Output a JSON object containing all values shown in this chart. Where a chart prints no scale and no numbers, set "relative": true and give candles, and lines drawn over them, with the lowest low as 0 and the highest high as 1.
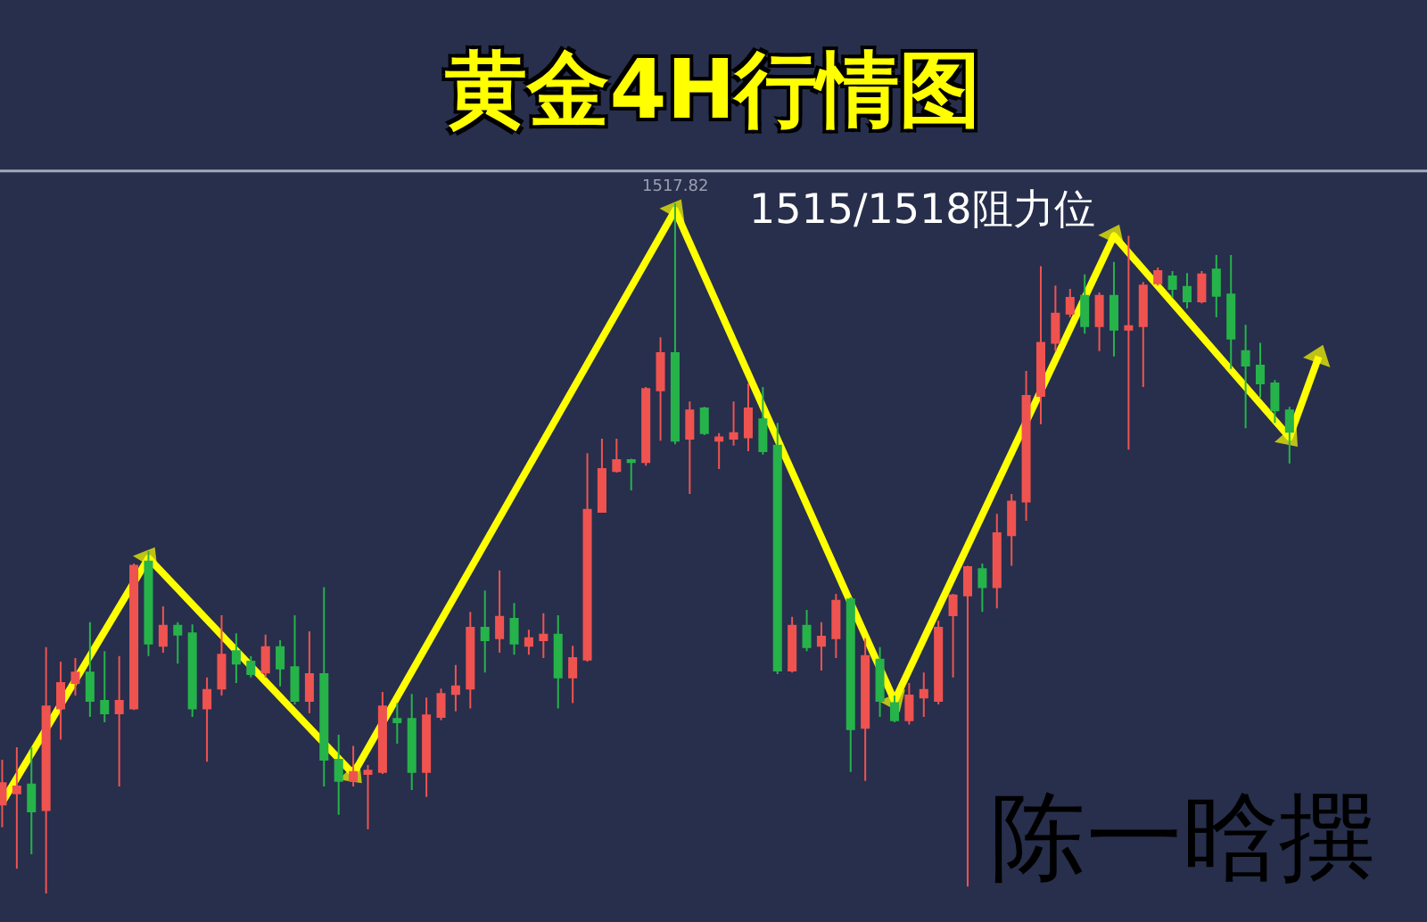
{
  "chart_data": {
    "type": "candlestick",
    "title": "黄金4H行情图",
    "relative": true,
    "categories": [
      null,
      null,
      null,
      null,
      null,
      null,
      null,
      null,
      null,
      null,
      null,
      null,
      null,
      null,
      null,
      null,
      null,
      null,
      null,
      null,
      null,
      null,
      null,
      null,
      null,
      null,
      null,
      null,
      null,
      null,
      null,
      null,
      null,
      null,
      null,
      null,
      null,
      null,
      null,
      null,
      null,
      null,
      null,
      null,
      null,
      null,
      null,
      null,
      null,
      null,
      null,
      null,
      null,
      null,
      null,
      null,
      null,
      null,
      null,
      null,
      null,
      null,
      null,
      null,
      null,
      null,
      null,
      null,
      null,
      null,
      null,
      null,
      null,
      null,
      null,
      null,
      null,
      null,
      null,
      null,
      null,
      null,
      null,
      null,
      null,
      null,
      null,
      null,
      null,
      null,
      null
    ],
    "ohlc": [
      [
        0.129,
        0.194,
        0.096,
        0.16
      ],
      [
        0.145,
        0.212,
        0.036,
        0.155
      ],
      [
        0.158,
        0.212,
        0.057,
        0.119
      ],
      [
        0.121,
        0.357,
        0,
        0.271
      ],
      [
        0.268,
        0.336,
        0.223,
        0.305
      ],
      [
        0.305,
        0.341,
        0.287,
        0.32
      ],
      [
        0.32,
        0.393,
        0.256,
        0.279
      ],
      [
        0.279,
        0.351,
        0.248,
        0.261
      ],
      [
        0.261,
        0.344,
        0.155,
        0.279
      ],
      [
        0.268,
        0.478,
        0.266,
        0.475
      ],
      [
        0.481,
        0.496,
        0.344,
        0.362
      ],
      [
        0.359,
        0.416,
        0.349,
        0.388
      ],
      [
        0.388,
        0.393,
        0.333,
        0.375
      ],
      [
        0.377,
        0.39,
        0.256,
        0.268
      ],
      [
        0.268,
        0.313,
        0.191,
        0.295
      ],
      [
        0.297,
        0.403,
        0.287,
        0.346
      ],
      [
        0.351,
        0.377,
        0.305,
        0.333
      ],
      [
        0.336,
        0.344,
        0.313,
        0.318
      ],
      [
        0.32,
        0.375,
        0.313,
        0.357
      ],
      [
        0.357,
        0.367,
        0.3,
        0.326
      ],
      [
        0.328,
        0.403,
        0.274,
        0.279
      ],
      [
        0.279,
        0.38,
        0.261,
        0.318
      ],
      [
        0.318,
        0.444,
        0.155,
        0.194
      ],
      [
        0.194,
        0.23,
        0.114,
        0.163
      ],
      [
        0.163,
        0.214,
        0.155,
        0.176
      ],
      [
        0.173,
        0.186,
        0.093,
        0.178
      ],
      [
        0.176,
        0.292,
        0.173,
        0.271
      ],
      [
        0.253,
        0.276,
        0.217,
        0.248
      ],
      [
        0.253,
        0.289,
        0.15,
        0.176
      ],
      [
        0.176,
        0.284,
        0.14,
        0.258
      ],
      [
        0.256,
        0.297,
        0.251,
        0.289
      ],
      [
        0.289,
        0.331,
        0.264,
        0.3
      ],
      [
        0.297,
        0.408,
        0.268,
        0.385
      ],
      [
        0.385,
        0.439,
        0.32,
        0.367
      ],
      [
        0.37,
        0.468,
        0.349,
        0.401
      ],
      [
        0.398,
        0.421,
        0.346,
        0.362
      ],
      [
        0.359,
        0.382,
        0.346,
        0.37
      ],
      [
        0.367,
        0.406,
        0.341,
        0.375
      ],
      [
        0.375,
        0.403,
        0.268,
        0.313
      ],
      [
        0.313,
        0.359,
        0.276,
        0.341
      ],
      [
        0.339,
        0.638,
        0.336,
        0.556
      ],
      [
        0.553,
        0.659,
        0.553,
        0.615
      ],
      [
        0.612,
        0.659,
        0.61,
        0.628
      ],
      [
        0.628,
        0.63,
        0.584,
        0.625
      ],
      [
        0.625,
        0.734,
        0.62,
        0.731
      ],
      [
        0.729,
        0.806,
        0.656,
        0.783
      ],
      [
        0.783,
        1,
        0.651,
        0.656
      ],
      [
        0.659,
        0.713,
        0.579,
        0.7
      ],
      [
        0.703,
        0.705,
        0.664,
        0.667
      ],
      [
        0.656,
        0.667,
        0.615,
        0.661
      ],
      [
        0.659,
        0.713,
        0.649,
        0.667
      ],
      [
        0.661,
        0.739,
        0.641,
        0.703
      ],
      [
        0.687,
        0.734,
        0.636,
        0.641
      ],
      [
        0.649,
        0.682,
        0.318,
        0.323
      ],
      [
        0.323,
        0.401,
        0.32,
        0.388
      ],
      [
        0.388,
        0.411,
        0.351,
        0.357
      ],
      [
        0.359,
        0.393,
        0.323,
        0.372
      ],
      [
        0.37,
        0.434,
        0.341,
        0.424
      ],
      [
        0.426,
        0.429,
        0.176,
        0.238
      ],
      [
        0.24,
        0.37,
        0.163,
        0.344
      ],
      [
        0.339,
        0.357,
        0.256,
        0.279
      ],
      [
        0.276,
        0.287,
        0.248,
        0.251
      ],
      [
        0.251,
        0.305,
        0.245,
        0.287
      ],
      [
        0.284,
        0.32,
        0.256,
        0.295
      ],
      [
        0.279,
        0.395,
        0.274,
        0.385
      ],
      [
        0.403,
        0.434,
        0.313,
        0.432
      ],
      [
        0.432,
        0.475,
        0.01,
        0.473
      ],
      [
        0.47,
        0.478,
        0.408,
        0.444
      ],
      [
        0.444,
        0.55,
        0.413,
        0.522
      ],
      [
        0.519,
        0.579,
        0.475,
        0.568
      ],
      [
        0.568,
        0.757,
        0.54,
        0.721
      ],
      [
        0.721,
        0.909,
        0.68,
        0.798
      ],
      [
        0.798,
        0.881,
        0.786,
        0.84
      ],
      [
        0.84,
        0.876,
        0.835,
        0.863
      ],
      [
        0.866,
        0.897,
        0.811,
        0.822
      ],
      [
        0.822,
        0.871,
        0.786,
        0.866
      ],
      [
        0.866,
        0.915,
        0.778,
        0.817
      ],
      [
        0.817,
        0.953,
        0.643,
        0.822
      ],
      [
        0.822,
        0.886,
        0.734,
        0.881
      ],
      [
        0.884,
        0.907,
        0.881,
        0.902
      ],
      [
        0.894,
        0.902,
        0.863,
        0.876
      ],
      [
        0.879,
        0.899,
        0.848,
        0.858
      ],
      [
        0.858,
        0.902,
        0.855,
        0.897
      ],
      [
        0.904,
        0.925,
        0.835,
        0.866
      ],
      [
        0.868,
        0.925,
        0.76,
        0.804
      ],
      [
        0.786,
        0.824,
        0.674,
        0.765
      ],
      [
        0.765,
        0.798,
        0.718,
        0.739
      ],
      [
        0.739,
        0.744,
        0.682,
        0.7
      ],
      [
        0.7,
        0.705,
        0.623,
        0.669
      ],
      null,
      null
    ],
    "colors": [
      "#ef5350",
      "#ef5350",
      "#26b34a",
      "#ef5350",
      "#ef5350",
      "#ef5350",
      "#26b34a",
      "#26b34a",
      "#ef5350",
      "#ef5350",
      "#26b34a",
      "#ef5350",
      "#26b34a",
      "#26b34a",
      "#ef5350",
      "#ef5350",
      "#26b34a",
      "#26b34a",
      "#ef5350",
      "#26b34a",
      "#26b34a",
      "#ef5350",
      "#26b34a",
      "#26b34a",
      "#ef5350",
      "#ef5350",
      "#ef5350",
      "#26b34a",
      "#26b34a",
      "#ef5350",
      "#ef5350",
      "#ef5350",
      "#ef5350",
      "#26b34a",
      "#ef5350",
      "#26b34a",
      "#ef5350",
      "#ef5350",
      "#26b34a",
      "#ef5350",
      "#ef5350",
      "#ef5350",
      "#ef5350",
      "#26b34a",
      "#ef5350",
      "#ef5350",
      "#26b34a",
      "#ef5350",
      "#26b34a",
      "#ef5350",
      "#ef5350",
      "#ef5350",
      "#26b34a",
      "#26b34a",
      "#ef5350",
      "#26b34a",
      "#ef5350",
      "#ef5350",
      "#26b34a",
      "#ef5350",
      "#26b34a",
      "#26b34a",
      "#ef5350",
      "#ef5350",
      "#ef5350",
      "#ef5350",
      "#ef5350",
      "#26b34a",
      "#ef5350",
      "#ef5350",
      "#ef5350",
      "#ef5350",
      "#ef5350",
      "#ef5350",
      "#26b34a",
      "#ef5350",
      "#26b34a",
      "#ef5350",
      "#ef5350",
      "#ef5350",
      "#26b34a",
      "#26b34a",
      "#ef5350",
      "#26b34a",
      "#26b34a",
      "#26b34a",
      "#26b34a",
      "#26b34a",
      "#26b34a",
      null,
      null
    ],
    "series": [
      {
        "type": "line",
        "color": "#ffff00",
        "marker": "triangle",
        "values": [
          0.132,
          null,
          null,
          null,
          null,
          null,
          null,
          null,
          null,
          null,
          0.486,
          null,
          null,
          null,
          null,
          null,
          null,
          null,
          null,
          null,
          null,
          null,
          null,
          null,
          0.173,
          null,
          null,
          null,
          null,
          null,
          null,
          null,
          null,
          null,
          null,
          null,
          null,
          null,
          null,
          null,
          null,
          null,
          null,
          null,
          null,
          null,
          0.99,
          null,
          null,
          null,
          null,
          null,
          null,
          null,
          null,
          null,
          null,
          null,
          null,
          null,
          null,
          0.279,
          null,
          null,
          null,
          null,
          null,
          null,
          null,
          null,
          null,
          null,
          null,
          null,
          null,
          null,
          0.953,
          null,
          null,
          null,
          null,
          null,
          null,
          null,
          null,
          null,
          null,
          null,
          0.661,
          null,
          0.778
        ]
      }
    ],
    "ref_lines": [
      {
        "axis": "y",
        "value": 1.047,
        "color": "#a3a8ba"
      }
    ],
    "annotations": [
      "1515/1518阻力位",
      {
        "text": "1517.82",
        "y": 1
      },
      "陈一晗撰"
    ]
  }
}
